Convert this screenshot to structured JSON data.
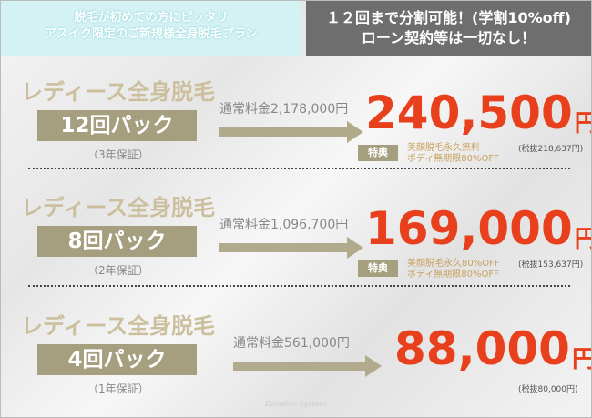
{
  "header": {
    "left": [
      "脱毛が初めての方にピッタリ",
      "アスイク限定のご新規様全身脱毛プラン"
    ],
    "right": [
      "１２回まで分割可能！(学割10%off)",
      "ローン契約等は一切なし！"
    ]
  },
  "plans": [
    {
      "title": "レディース全身脱毛",
      "pack": "12回パック",
      "warranty": "（3年保証）",
      "regular": "通常料金2,178,000円",
      "price": "240,500",
      "unit": "円",
      "tax": "(税抜218,637円)",
      "perk_label": "特典",
      "perks": [
        "美顔脱毛永久無料",
        "ボディ無期限80%OFF"
      ]
    },
    {
      "title": "レディース全身脱毛",
      "pack": "8回パック",
      "warranty": "（2年保証）",
      "regular": "通常料金1,096,700円",
      "price": "169,000",
      "unit": "円",
      "tax": "(税抜153,637円)",
      "perk_label": "特典",
      "perks": [
        "美顔脱毛永久80%OFF",
        "ボディ無期限80%OFF"
      ]
    },
    {
      "title": "レディース全身脱毛",
      "pack": "4回パック",
      "warranty": "（1年保証）",
      "regular": "通常料金561,000円",
      "price": "88,000",
      "unit": "円",
      "tax": "(税抜80,000円)"
    }
  ],
  "footer": "Epilation System"
}
